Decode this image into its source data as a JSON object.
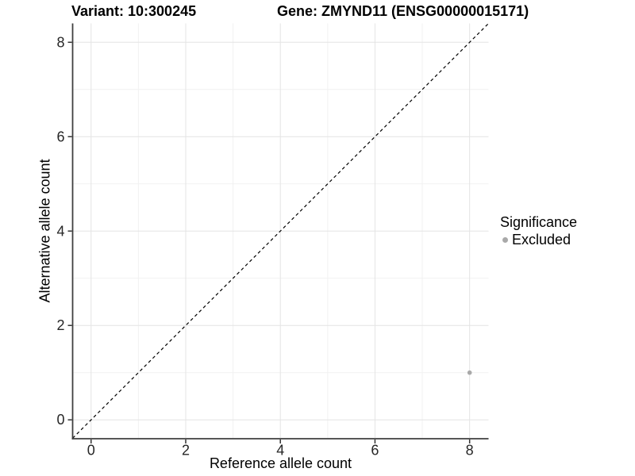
{
  "chart_data": {
    "type": "scatter",
    "title_left": "Variant: 10:300245",
    "title_right": "Gene: ZMYND11 (ENSG00000015171)",
    "xlabel": "Reference allele count",
    "ylabel": "Alternative allele count",
    "x_ticks": [
      0,
      2,
      4,
      6,
      8
    ],
    "y_ticks": [
      0,
      2,
      4,
      6,
      8
    ],
    "x_minor_breaks": [
      1,
      3,
      5,
      7
    ],
    "y_minor_breaks": [
      1,
      3,
      5,
      7
    ],
    "xlim": [
      -0.39,
      8.4
    ],
    "ylim": [
      -0.4,
      8.4
    ],
    "grid": "major-and-minor",
    "points": [
      {
        "x": 8,
        "y": 1,
        "series": "Excluded"
      }
    ],
    "reference_line": {
      "kind": "identity",
      "slope": 1,
      "intercept": 0,
      "style": "dashed"
    },
    "legend": {
      "position": "right",
      "title": "Significance",
      "entries": [
        {
          "label": "Excluded",
          "color": "#a9a9a9"
        }
      ]
    },
    "colors": {
      "point": "#a9a9a9",
      "grid_major": "#e4e4e4",
      "grid_minor": "#f1f1f1",
      "axis_line": "#3f3f3f",
      "tick_mark": "#333333",
      "tick_label": "#262626",
      "reference_line": "#000000",
      "background": "#ffffff"
    }
  }
}
